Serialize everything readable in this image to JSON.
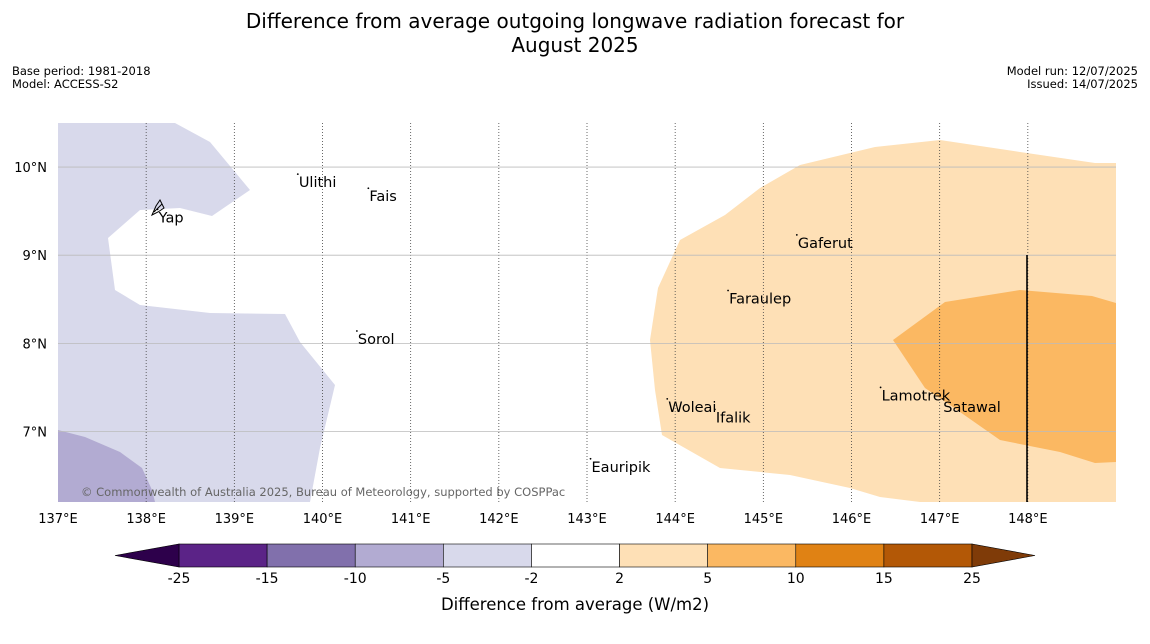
{
  "title_line1": "Difference from average outgoing longwave radiation forecast for",
  "title_line2": "August 2025",
  "meta_left": [
    "Base period: 1981-2018",
    "Model: ACCESS-S2"
  ],
  "meta_right": [
    "Model run: 12/07/2025",
    "Issued: 14/07/2025"
  ],
  "map": {
    "lon_range": [
      137.0,
      149.0
    ],
    "lat_range": [
      6.2,
      10.5
    ],
    "lon_ticks": [
      {
        "value": 137,
        "label": "137°E"
      },
      {
        "value": 138,
        "label": "138°E"
      },
      {
        "value": 139,
        "label": "139°E"
      },
      {
        "value": 140,
        "label": "140°E"
      },
      {
        "value": 141,
        "label": "141°E"
      },
      {
        "value": 142,
        "label": "142°E"
      },
      {
        "value": 143,
        "label": "143°E"
      },
      {
        "value": 144,
        "label": "144°E"
      },
      {
        "value": 145,
        "label": "145°E"
      },
      {
        "value": 146,
        "label": "146°E"
      },
      {
        "value": 147,
        "label": "147°E"
      },
      {
        "value": 148,
        "label": "148°E"
      }
    ],
    "lat_ticks": [
      {
        "value": 10,
        "label": "10°N"
      },
      {
        "value": 9,
        "label": "9°N"
      },
      {
        "value": 8,
        "label": "8°N"
      },
      {
        "value": 7,
        "label": "7°N"
      }
    ],
    "places": [
      {
        "name": "Ulithi",
        "lon": 139.72,
        "lat": 9.92
      },
      {
        "name": "Fais",
        "lon": 140.52,
        "lat": 9.76
      },
      {
        "name": "Yap",
        "lon": 138.13,
        "lat": 9.52
      },
      {
        "name": "Gaferut",
        "lon": 145.38,
        "lat": 9.23
      },
      {
        "name": "Faraulep",
        "lon": 144.6,
        "lat": 8.6
      },
      {
        "name": "Sorol",
        "lon": 140.39,
        "lat": 8.14
      },
      {
        "name": "Lamotrek",
        "lon": 146.33,
        "lat": 7.5
      },
      {
        "name": "Woleai",
        "lon": 143.91,
        "lat": 7.37
      },
      {
        "name": "Ifalik",
        "lon": 144.45,
        "lat": 7.25
      },
      {
        "name": "Satawal",
        "lon": 147.03,
        "lat": 7.37
      },
      {
        "name": "Eauripik",
        "lon": 143.04,
        "lat": 6.69
      }
    ],
    "copyright": "© Commonwealth of Australia 2025, Bureau of Meteorology, supported by COSPPac"
  },
  "colorbar": {
    "levels": [
      "-25",
      "-15",
      "-10",
      "-5",
      "-2",
      "2",
      "5",
      "10",
      "15",
      "25"
    ],
    "colors": [
      "#5b2387",
      "#8170ac",
      "#b2abd2",
      "#d8d9eb",
      "#ffffff",
      "#fee0b6",
      "#fbb862",
      "#e08214",
      "#b35806"
    ],
    "under_color": "#2d004b",
    "over_color": "#7f3b08",
    "label": "Difference from average (W/m2)"
  }
}
